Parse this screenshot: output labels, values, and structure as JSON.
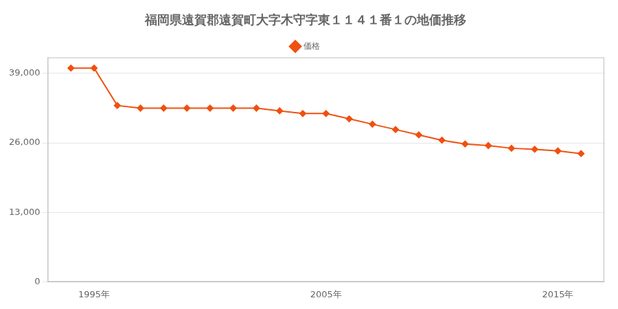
{
  "chart_data": {
    "type": "line",
    "title": "福岡県遠賀郡遠賀町大字木守字東１１４１番１の地価推移",
    "x": [
      1994,
      1995,
      1996,
      1997,
      1998,
      1999,
      2000,
      2001,
      2002,
      2003,
      2004,
      2005,
      2006,
      2007,
      2008,
      2009,
      2010,
      2011,
      2012,
      2013,
      2014,
      2015,
      2016
    ],
    "series": [
      {
        "name": "価格",
        "color": "#f05010",
        "marker": "diamond",
        "values": [
          40000,
          40000,
          33000,
          32500,
          32500,
          32500,
          32500,
          32500,
          32500,
          32000,
          31500,
          31500,
          30500,
          29500,
          28500,
          27500,
          26500,
          25800,
          25500,
          25000,
          24800,
          24500,
          24000
        ]
      }
    ],
    "xlim": [
      1993,
      2017
    ],
    "xticks": [
      {
        "value": 1995,
        "label": "1995年"
      },
      {
        "value": 2005,
        "label": "2005年"
      },
      {
        "value": 2015,
        "label": "2015年"
      }
    ],
    "ylim": [
      0,
      42000
    ],
    "yticks": [
      0,
      {
        "value": 13000,
        "label": "13,000"
      },
      {
        "value": 26000,
        "label": "26,000"
      },
      {
        "value": 39000,
        "label": "39,000"
      }
    ],
    "grid": "y",
    "legend": "top"
  }
}
